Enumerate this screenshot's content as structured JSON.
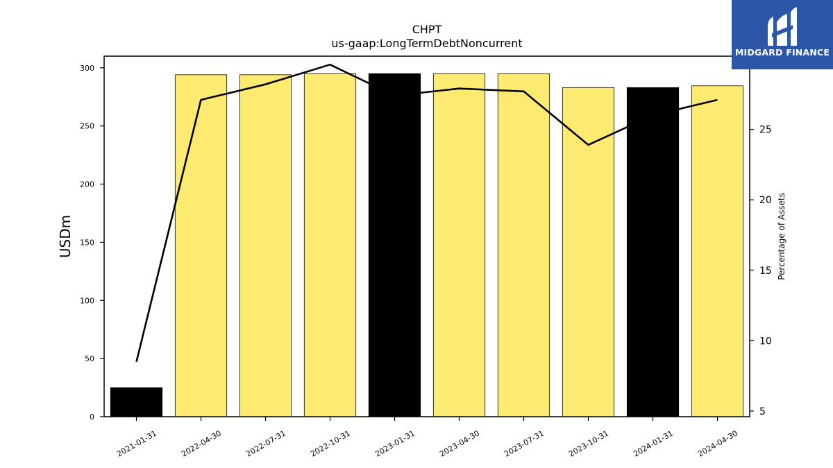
{
  "brand": {
    "name": "MIDGARD FINANCE",
    "bg_color": "#2c57a8"
  },
  "chart_data": {
    "type": "bar",
    "title": "CHPT",
    "subtitle": "us-gaap:LongTermDebtNoncurrent",
    "ylabel": "USDm",
    "y2label": "Percentage of Assets",
    "categories": [
      "2021-01-31",
      "2022-04-30",
      "2022-07-31",
      "2022-10-31",
      "2023-01-31",
      "2023-04-30",
      "2023-07-31",
      "2023-10-31",
      "2024-01-31",
      "2024-04-30"
    ],
    "series": [
      {
        "kind": "bar",
        "axis": "left",
        "values": [
          25,
          294,
          294,
          295,
          295,
          295,
          295,
          283,
          283,
          284.5
        ]
      },
      {
        "kind": "line",
        "axis": "right",
        "values": [
          8.5,
          27.1,
          28.2,
          29.6,
          27.4,
          27.9,
          27.7,
          23.9,
          26.0,
          27.1
        ]
      }
    ],
    "bar_colors": [
      "#000000",
      "#fdeb71",
      "#fdeb71",
      "#fdeb71",
      "#000000",
      "#fdeb71",
      "#fdeb71",
      "#fdeb71",
      "#000000",
      "#fdeb71"
    ],
    "line_color": "#000000",
    "ylim": [
      0,
      310
    ],
    "yticks": [
      0,
      50,
      100,
      150,
      200,
      250,
      300
    ],
    "y2lim": [
      4.6,
      30.2
    ],
    "y2ticks": [
      5,
      10,
      15,
      20,
      25
    ],
    "grid": false,
    "legend": "none"
  }
}
